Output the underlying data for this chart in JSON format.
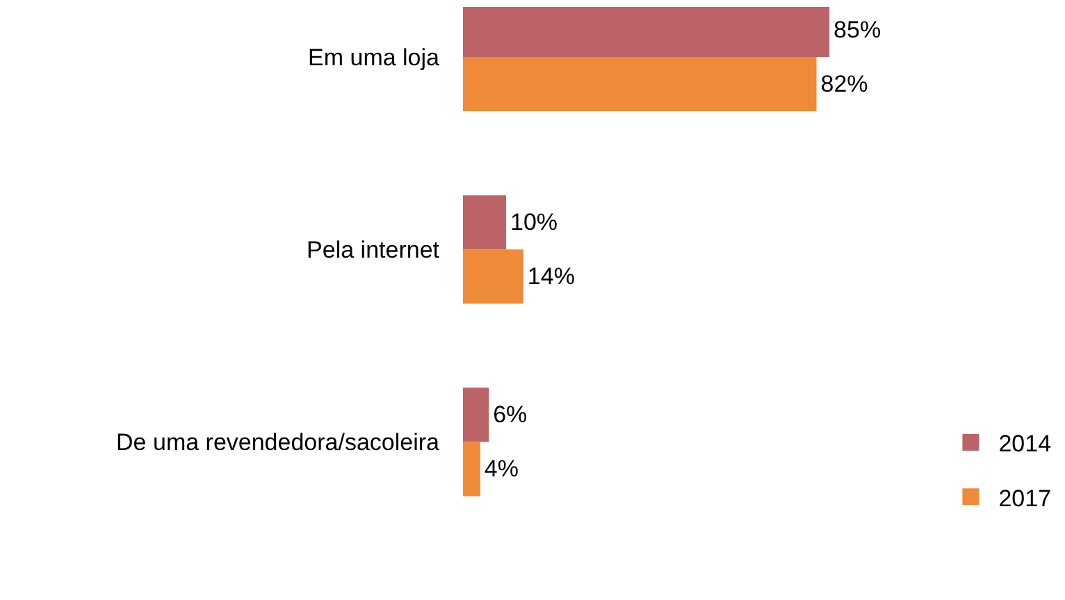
{
  "chart_data": {
    "type": "bar",
    "orientation": "horizontal",
    "categories": [
      "Em uma loja",
      "Pela internet",
      "De uma revendedora/sacoleira"
    ],
    "series": [
      {
        "name": "2014",
        "color": "#bd6468",
        "values": [
          85,
          10,
          6
        ],
        "value_labels": [
          "85%",
          "10%",
          "6%"
        ]
      },
      {
        "name": "2017",
        "color": "#ee8a38",
        "values": [
          82,
          14,
          4
        ],
        "value_labels": [
          "82%",
          "14%",
          "4%"
        ]
      }
    ],
    "legend": "bottom right",
    "tick_labels": "y"
  }
}
